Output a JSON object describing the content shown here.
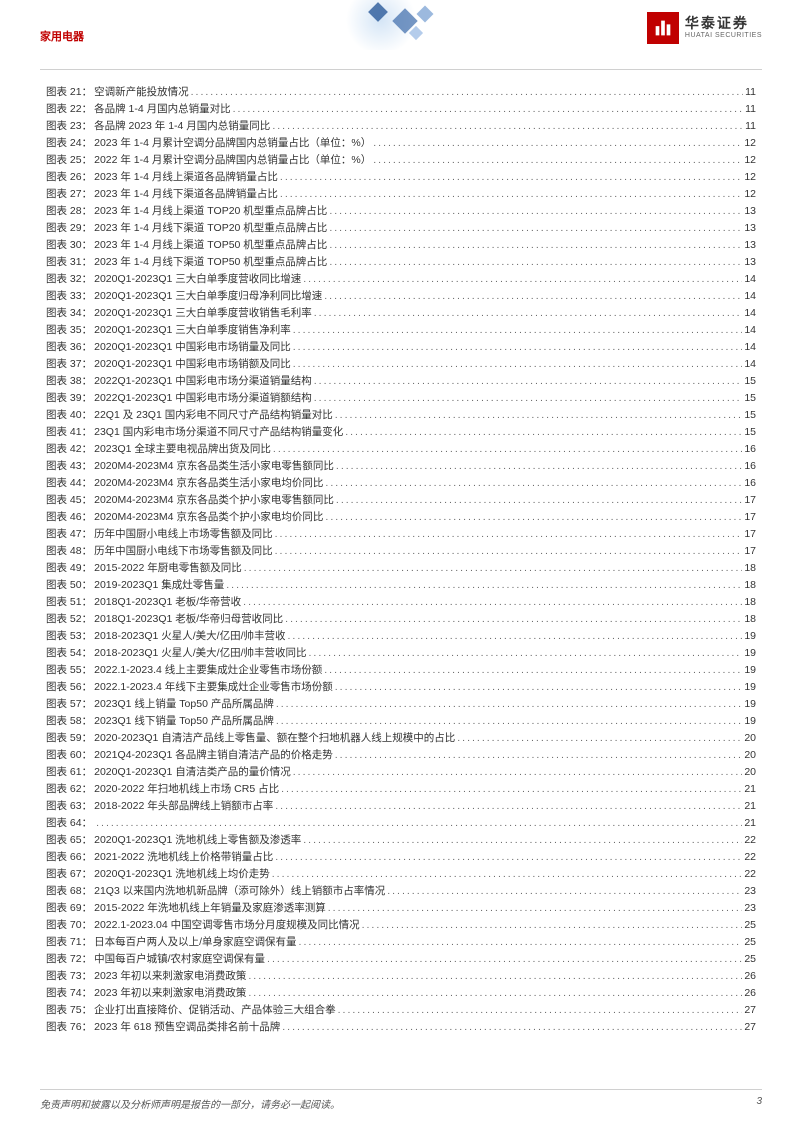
{
  "header": {
    "section_title": "家用电器",
    "logo_cn": "华泰证券",
    "logo_en": "HUATAI SECURITIES",
    "accent_color": "#c00000",
    "border_color": "#d0d0d0"
  },
  "toc": {
    "label_prefix": "图表",
    "label_suffix": "：",
    "font_size": 10.5,
    "text_color": "#333333",
    "items": [
      {
        "num": "21",
        "title": "空调新产能投放情况",
        "page": "11"
      },
      {
        "num": "22",
        "title": "各品牌 1-4 月国内总销量对比",
        "page": "11"
      },
      {
        "num": "23",
        "title": "各品牌 2023 年 1-4 月国内总销量同比",
        "page": "11"
      },
      {
        "num": "24",
        "title": "2023 年 1-4 月累计空调分品牌国内总销量占比（单位：%）",
        "page": "12"
      },
      {
        "num": "25",
        "title": "2022 年 1-4 月累计空调分品牌国内总销量占比（单位：%）",
        "page": "12"
      },
      {
        "num": "26",
        "title": "2023 年 1-4 月线上渠道各品牌销量占比",
        "page": "12"
      },
      {
        "num": "27",
        "title": "2023 年 1-4 月线下渠道各品牌销量占比",
        "page": "12"
      },
      {
        "num": "28",
        "title": "2023 年 1-4 月线上渠道 TOP20 机型重点品牌占比",
        "page": "13"
      },
      {
        "num": "29",
        "title": "2023 年 1-4 月线下渠道 TOP20 机型重点品牌占比",
        "page": "13"
      },
      {
        "num": "30",
        "title": "2023 年 1-4 月线上渠道 TOP50 机型重点品牌占比",
        "page": "13"
      },
      {
        "num": "31",
        "title": "2023 年 1-4 月线下渠道 TOP50 机型重点品牌占比",
        "page": "13"
      },
      {
        "num": "32",
        "title": "2020Q1-2023Q1 三大白单季度营收同比增速",
        "page": "14"
      },
      {
        "num": "33",
        "title": "2020Q1-2023Q1 三大白单季度归母净利同比增速",
        "page": "14"
      },
      {
        "num": "34",
        "title": "2020Q1-2023Q1 三大白单季度营收销售毛利率",
        "page": "14"
      },
      {
        "num": "35",
        "title": "2020Q1-2023Q1 三大白单季度销售净利率",
        "page": "14"
      },
      {
        "num": "36",
        "title": "2020Q1-2023Q1 中国彩电市场销量及同比",
        "page": "14"
      },
      {
        "num": "37",
        "title": "2020Q1-2023Q1 中国彩电市场销额及同比",
        "page": "14"
      },
      {
        "num": "38",
        "title": "2022Q1-2023Q1 中国彩电市场分渠道销量结构",
        "page": "15"
      },
      {
        "num": "39",
        "title": "2022Q1-2023Q1 中国彩电市场分渠道销额结构",
        "page": "15"
      },
      {
        "num": "40",
        "title": "22Q1 及 23Q1 国内彩电不同尺寸产品结构销量对比",
        "page": "15"
      },
      {
        "num": "41",
        "title": "23Q1 国内彩电市场分渠道不同尺寸产品结构销量变化",
        "page": "15"
      },
      {
        "num": "42",
        "title": "2023Q1 全球主要电视品牌出货及同比",
        "page": "16"
      },
      {
        "num": "43",
        "title": "2020M4-2023M4 京东各品类生活小家电零售额同比",
        "page": "16"
      },
      {
        "num": "44",
        "title": "2020M4-2023M4 京东各品类生活小家电均价同比",
        "page": "16"
      },
      {
        "num": "45",
        "title": "2020M4-2023M4 京东各品类个护小家电零售额同比",
        "page": "17"
      },
      {
        "num": "46",
        "title": "2020M4-2023M4 京东各品类个护小家电均价同比",
        "page": "17"
      },
      {
        "num": "47",
        "title": "历年中国厨小电线上市场零售额及同比",
        "page": "17"
      },
      {
        "num": "48",
        "title": "历年中国厨小电线下市场零售额及同比",
        "page": "17"
      },
      {
        "num": "49",
        "title": "2015-2022 年厨电零售额及同比",
        "page": "18"
      },
      {
        "num": "50",
        "title": "2019-2023Q1 集成灶零售量",
        "page": "18"
      },
      {
        "num": "51",
        "title": "2018Q1-2023Q1 老板/华帝营收",
        "page": "18"
      },
      {
        "num": "52",
        "title": "2018Q1-2023Q1 老板/华帝归母营收同比",
        "page": "18"
      },
      {
        "num": "53",
        "title": "2018-2023Q1 火星人/美大/亿田/帅丰营收",
        "page": "19"
      },
      {
        "num": "54",
        "title": "2018-2023Q1 火星人/美大/亿田/帅丰营收同比",
        "page": "19"
      },
      {
        "num": "55",
        "title": "2022.1-2023.4 线上主要集成灶企业零售市场份额",
        "page": "19"
      },
      {
        "num": "56",
        "title": "2022.1-2023.4 年线下主要集成灶企业零售市场份额",
        "page": "19"
      },
      {
        "num": "57",
        "title": "2023Q1 线上销量 Top50 产品所属品牌",
        "page": "19"
      },
      {
        "num": "58",
        "title": "2023Q1 线下销量 Top50 产品所属品牌",
        "page": "19"
      },
      {
        "num": "59",
        "title": "2020-2023Q1 自清洁产品线上零售量、额在整个扫地机器人线上规模中的占比",
        "page": "20"
      },
      {
        "num": "60",
        "title": "2021Q4-2023Q1 各品牌主销自清洁产品的价格走势",
        "page": "20"
      },
      {
        "num": "61",
        "title": "2020Q1-2023Q1 自清洁类产品的量价情况",
        "page": "20"
      },
      {
        "num": "62",
        "title": "2020-2022 年扫地机线上市场 CR5 占比",
        "page": "21"
      },
      {
        "num": "63",
        "title": "2018-2022 年头部品牌线上销额市占率",
        "page": "21"
      },
      {
        "num": "64",
        "title": "",
        "page": "21"
      },
      {
        "num": "65",
        "title": "2020Q1-2023Q1 洗地机线上零售额及渗透率",
        "page": "22"
      },
      {
        "num": "66",
        "title": "2021-2022 洗地机线上价格带销量占比",
        "page": "22"
      },
      {
        "num": "67",
        "title": "2020Q1-2023Q1 洗地机线上均价走势",
        "page": "22"
      },
      {
        "num": "68",
        "title": "21Q3 以来国内洗地机新品牌（添可除外）线上销额市占率情况",
        "page": "23"
      },
      {
        "num": "69",
        "title": "2015-2022 年洗地机线上年销量及家庭渗透率测算",
        "page": "23"
      },
      {
        "num": "70",
        "title": "2022.1-2023.04 中国空调零售市场分月度规模及同比情况",
        "page": "25"
      },
      {
        "num": "71",
        "title": "日本每百户两人及以上/单身家庭空调保有量",
        "page": "25"
      },
      {
        "num": "72",
        "title": "中国每百户城镇/农村家庭空调保有量",
        "page": "25"
      },
      {
        "num": "73",
        "title": "2023 年初以来刺激家电消费政策",
        "page": "26"
      },
      {
        "num": "74",
        "title": "2023 年初以来刺激家电消费政策",
        "page": "26"
      },
      {
        "num": "75",
        "title": "企业打出直接降价、促销活动、产品体验三大组合拳",
        "page": "27"
      },
      {
        "num": "76",
        "title": "2023 年 618 预售空调品类排名前十品牌",
        "page": "27"
      }
    ]
  },
  "footer": {
    "disclaimer": "免责声明和披露以及分析师声明是报告的一部分，请务必一起阅读。",
    "page_number": "3"
  }
}
